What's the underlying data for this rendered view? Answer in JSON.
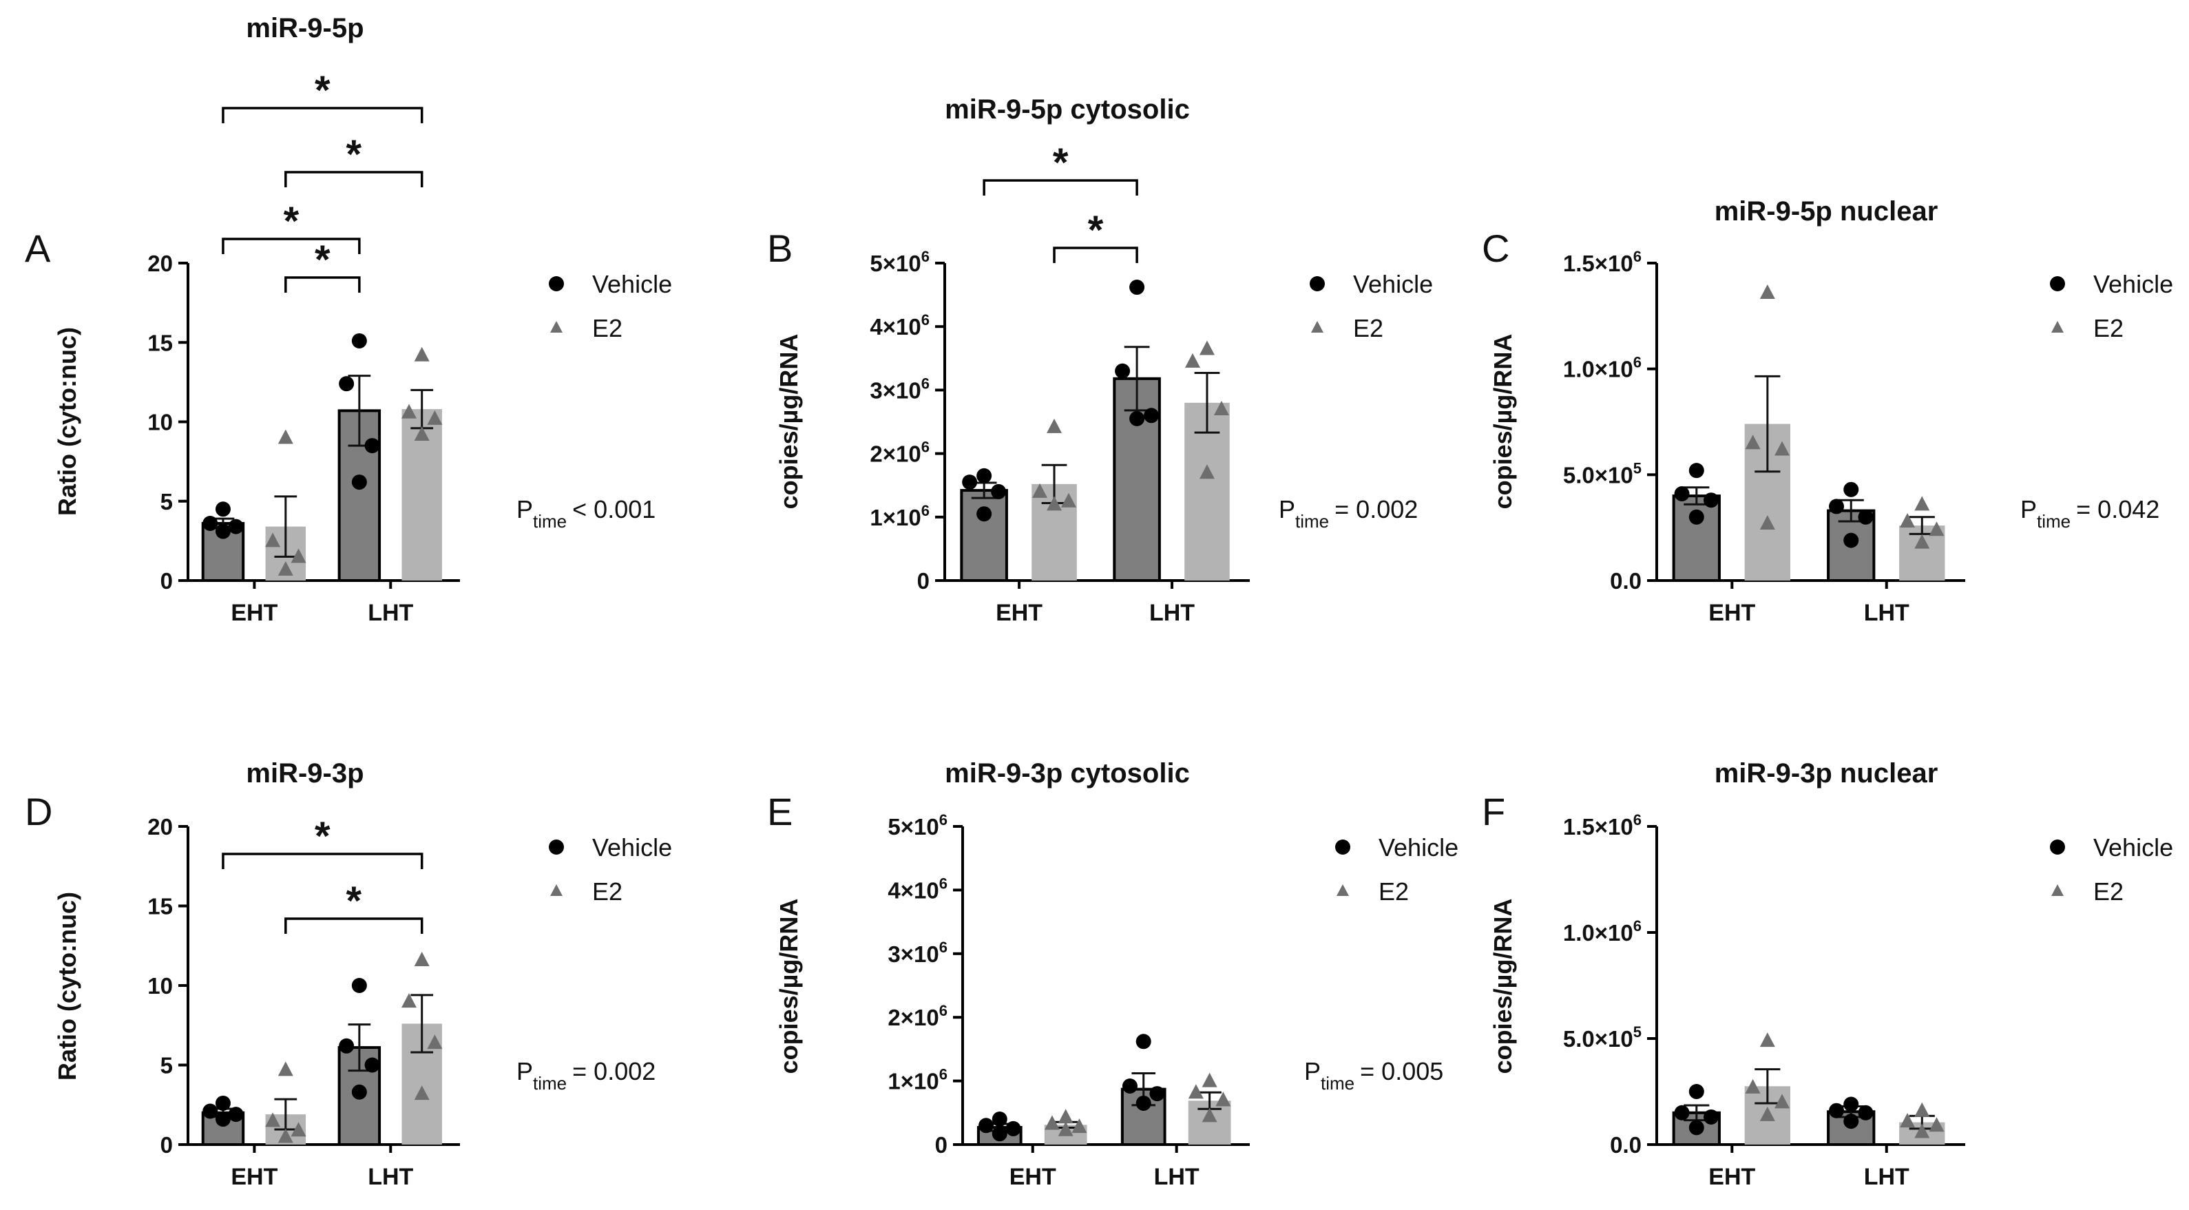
{
  "figure": {
    "legend_labels": [
      "Vehicle",
      "E2"
    ],
    "p_symbol": "P",
    "p_subscript": "time",
    "star_symbol": "*"
  },
  "colors": {
    "vehicle_bar": "#7f7f7f",
    "e2_bar": "#b3b3b3",
    "vehicle_marker": "#000000",
    "e2_marker": "#6e6e6e",
    "axis": "#000000"
  },
  "chart_data": [
    {
      "panel": "A",
      "type": "bar",
      "title": "miR-9-5p",
      "ylabel": "Ratio (cyto:nuc)",
      "categories": [
        "EHT",
        "LHT"
      ],
      "ylim": [
        0,
        20
      ],
      "y_ticks": [
        {
          "value": 0,
          "label": "0"
        },
        {
          "value": 5,
          "label": "5"
        },
        {
          "value": 10,
          "label": "10"
        },
        {
          "value": 15,
          "label": "15"
        },
        {
          "value": 20,
          "label": "20"
        }
      ],
      "series": [
        {
          "name": "Vehicle",
          "values": [
            3.6,
            10.7
          ],
          "sem": [
            0.3,
            2.2
          ],
          "points": [
            [
              4.5,
              3.6,
              3.4,
              3.1
            ],
            [
              15.1,
              12.4,
              8.5,
              6.2
            ]
          ]
        },
        {
          "name": "E2",
          "values": [
            3.4,
            10.8
          ],
          "sem": [
            1.9,
            1.2
          ],
          "points": [
            [
              9.0,
              2.5,
              1.5,
              0.7
            ],
            [
              14.2,
              10.6,
              10.2,
              9.2
            ]
          ]
        }
      ],
      "significance": [
        {
          "from": [
            0,
            0
          ],
          "to": [
            1,
            1
          ],
          "label": "*",
          "level": 0
        },
        {
          "from": [
            0,
            1
          ],
          "to": [
            1,
            1
          ],
          "label": "*",
          "level": 1
        },
        {
          "from": [
            0,
            0
          ],
          "to": [
            1,
            0
          ],
          "label": "*",
          "level": 2
        },
        {
          "from": [
            0,
            1
          ],
          "to": [
            1,
            0
          ],
          "label": "*",
          "level": 3
        }
      ],
      "p_relation": "< 0.001",
      "legend_position": "right"
    },
    {
      "panel": "B",
      "type": "bar",
      "title": "miR-9-5p cytosolic",
      "ylabel": "copies/µg/RNA",
      "categories": [
        "EHT",
        "LHT"
      ],
      "ylim": [
        0,
        5000000
      ],
      "y_ticks": [
        {
          "value": 0,
          "label": "0"
        },
        {
          "value": 1000000,
          "label": "1×10",
          "exp": "6"
        },
        {
          "value": 2000000,
          "label": "2×10",
          "exp": "6"
        },
        {
          "value": 3000000,
          "label": "3×10",
          "exp": "6"
        },
        {
          "value": 4000000,
          "label": "4×10",
          "exp": "6"
        },
        {
          "value": 5000000,
          "label": "5×10",
          "exp": "6"
        }
      ],
      "series": [
        {
          "name": "Vehicle",
          "values": [
            1420000,
            3180000
          ],
          "sem": [
            120000,
            500000
          ],
          "points": [
            [
              1650000,
              1550000,
              1400000,
              1050000
            ],
            [
              4620000,
              3300000,
              2600000,
              2550000
            ]
          ]
        },
        {
          "name": "E2",
          "values": [
            1520000,
            2800000
          ],
          "sem": [
            300000,
            470000
          ],
          "points": [
            [
              2420000,
              1400000,
              1250000,
              1200000
            ],
            [
              3650000,
              3450000,
              2700000,
              1700000
            ]
          ]
        }
      ],
      "significance": [
        {
          "from": [
            0,
            0
          ],
          "to": [
            1,
            0
          ],
          "label": "*",
          "level": 0
        },
        {
          "from": [
            0,
            1
          ],
          "to": [
            1,
            0
          ],
          "label": "*",
          "level": 1
        }
      ],
      "p_relation": "= 0.002",
      "legend_position": "right"
    },
    {
      "panel": "C",
      "type": "bar",
      "title": "miR-9-5p nuclear",
      "ylabel": "copies/µg/RNA",
      "categories": [
        "EHT",
        "LHT"
      ],
      "ylim": [
        0,
        1500000
      ],
      "y_ticks": [
        {
          "value": 0,
          "label": "0.0"
        },
        {
          "value": 500000,
          "label": "5.0×10",
          "exp": "5"
        },
        {
          "value": 1000000,
          "label": "1.0×10",
          "exp": "6"
        },
        {
          "value": 1500000,
          "label": "1.5×10",
          "exp": "6"
        }
      ],
      "series": [
        {
          "name": "Vehicle",
          "values": [
            400000,
            330000
          ],
          "sem": [
            40000,
            50000
          ],
          "points": [
            [
              520000,
              410000,
              380000,
              300000
            ],
            [
              430000,
              350000,
              300000,
              190000
            ]
          ]
        },
        {
          "name": "E2",
          "values": [
            740000,
            260000
          ],
          "sem": [
            225000,
            40000
          ],
          "points": [
            [
              1360000,
              650000,
              620000,
              270000
            ],
            [
              360000,
              280000,
              240000,
              180000
            ]
          ]
        }
      ],
      "significance": [],
      "p_relation": "= 0.042",
      "legend_position": "right"
    },
    {
      "panel": "D",
      "type": "bar",
      "title": "miR-9-3p",
      "ylabel": "Ratio (cyto:nuc)",
      "categories": [
        "EHT",
        "LHT"
      ],
      "ylim": [
        0,
        20
      ],
      "y_ticks": [
        {
          "value": 0,
          "label": "0"
        },
        {
          "value": 5,
          "label": "5"
        },
        {
          "value": 10,
          "label": "10"
        },
        {
          "value": 15,
          "label": "15"
        },
        {
          "value": 20,
          "label": "20"
        }
      ],
      "series": [
        {
          "name": "Vehicle",
          "values": [
            2.0,
            6.1
          ],
          "sem": [
            0.25,
            1.45
          ],
          "points": [
            [
              2.6,
              2.1,
              1.9,
              1.6
            ],
            [
              10.0,
              6.2,
              5.0,
              3.3
            ]
          ]
        },
        {
          "name": "E2",
          "values": [
            1.9,
            7.6
          ],
          "sem": [
            0.95,
            1.8
          ],
          "points": [
            [
              4.7,
              1.5,
              0.9,
              0.5
            ],
            [
              11.6,
              9.0,
              6.4,
              3.2
            ]
          ]
        }
      ],
      "significance": [
        {
          "from": [
            0,
            0
          ],
          "to": [
            1,
            1
          ],
          "label": "*",
          "level": 0
        },
        {
          "from": [
            0,
            1
          ],
          "to": [
            1,
            1
          ],
          "label": "*",
          "level": 1
        }
      ],
      "p_relation": "= 0.002",
      "legend_position": "right"
    },
    {
      "panel": "E",
      "type": "bar",
      "title": "miR-9-3p cytosolic",
      "ylabel": "copies/µg/RNA",
      "categories": [
        "EHT",
        "LHT"
      ],
      "ylim": [
        0,
        5000000
      ],
      "y_ticks": [
        {
          "value": 0,
          "label": "0"
        },
        {
          "value": 1000000,
          "label": "1×10",
          "exp": "6"
        },
        {
          "value": 2000000,
          "label": "2×10",
          "exp": "6"
        },
        {
          "value": 3000000,
          "label": "3×10",
          "exp": "6"
        },
        {
          "value": 4000000,
          "label": "4×10",
          "exp": "6"
        },
        {
          "value": 5000000,
          "label": "5×10",
          "exp": "6"
        }
      ],
      "series": [
        {
          "name": "Vehicle",
          "values": [
            270000,
            870000
          ],
          "sem": [
            55000,
            250000
          ],
          "points": [
            [
              400000,
              300000,
              250000,
              170000
            ],
            [
              1620000,
              920000,
              800000,
              650000
            ]
          ]
        },
        {
          "name": "E2",
          "values": [
            310000,
            690000
          ],
          "sem": [
            45000,
            130000
          ],
          "points": [
            [
              430000,
              330000,
              280000,
              230000
            ],
            [
              1000000,
              820000,
              700000,
              450000
            ]
          ]
        }
      ],
      "significance": [],
      "p_relation": "= 0.005",
      "legend_position": "right"
    },
    {
      "panel": "F",
      "type": "bar",
      "title": "miR-9-3p nuclear",
      "ylabel": "copies/µg/RNA",
      "categories": [
        "EHT",
        "LHT"
      ],
      "ylim": [
        0,
        1500000
      ],
      "y_ticks": [
        {
          "value": 0,
          "label": "0.0"
        },
        {
          "value": 500000,
          "label": "5.0×10",
          "exp": "5"
        },
        {
          "value": 1000000,
          "label": "1.0×10",
          "exp": "6"
        },
        {
          "value": 1500000,
          "label": "1.5×10",
          "exp": "6"
        }
      ],
      "series": [
        {
          "name": "Vehicle",
          "values": [
            150000,
            155000
          ],
          "sem": [
            35000,
            25000
          ],
          "points": [
            [
              250000,
              150000,
              130000,
              80000
            ],
            [
              190000,
              160000,
              150000,
              110000
            ]
          ]
        },
        {
          "name": "E2",
          "values": [
            275000,
            105000
          ],
          "sem": [
            80000,
            30000
          ],
          "points": [
            [
              490000,
              270000,
              200000,
              140000
            ],
            [
              160000,
              110000,
              90000,
              60000
            ]
          ]
        }
      ],
      "significance": [],
      "p_relation": null,
      "legend_position": "right"
    }
  ]
}
